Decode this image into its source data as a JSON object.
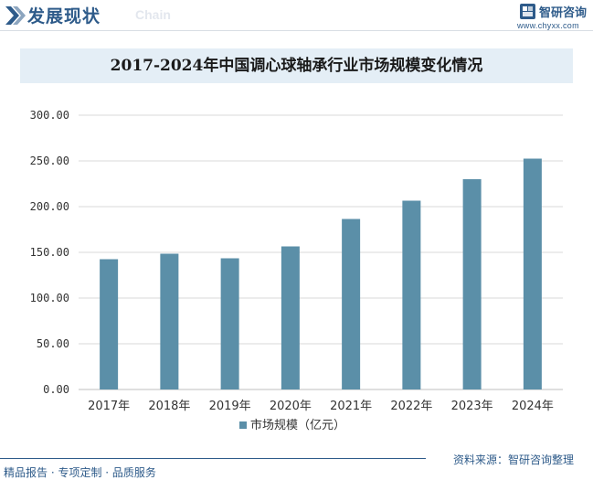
{
  "header": {
    "title": "发展现状",
    "subtitle": "Chain"
  },
  "brand": {
    "name": "智研咨询",
    "url": "www.chyxx.com"
  },
  "footer": {
    "left_text": "精品报告 · 专项定制 · 品质服务",
    "source_text": "资料来源：智研咨询整理"
  },
  "colors": {
    "bar": "#5b8fa8",
    "brand": "#2e5b8a",
    "title_bg": "#e4eef6",
    "grid": "#d9d9d9"
  },
  "chart_data": {
    "type": "bar",
    "title": "2017-2024年中国调心球轴承行业市场规模变化情况",
    "categories": [
      "2017年",
      "2018年",
      "2019年",
      "2020年",
      "2021年",
      "2022年",
      "2023年",
      "2024年"
    ],
    "series": [
      {
        "name": "市场规模（亿元）",
        "values": [
          142.5,
          148.5,
          143.5,
          156.5,
          186.5,
          206.5,
          230.0,
          252.5
        ]
      }
    ],
    "yticks": [
      "0.00",
      "50.00",
      "100.00",
      "150.00",
      "200.00",
      "250.00",
      "300.00"
    ],
    "ylim": [
      0,
      300
    ],
    "grid": true,
    "legend_position": "bottom"
  }
}
